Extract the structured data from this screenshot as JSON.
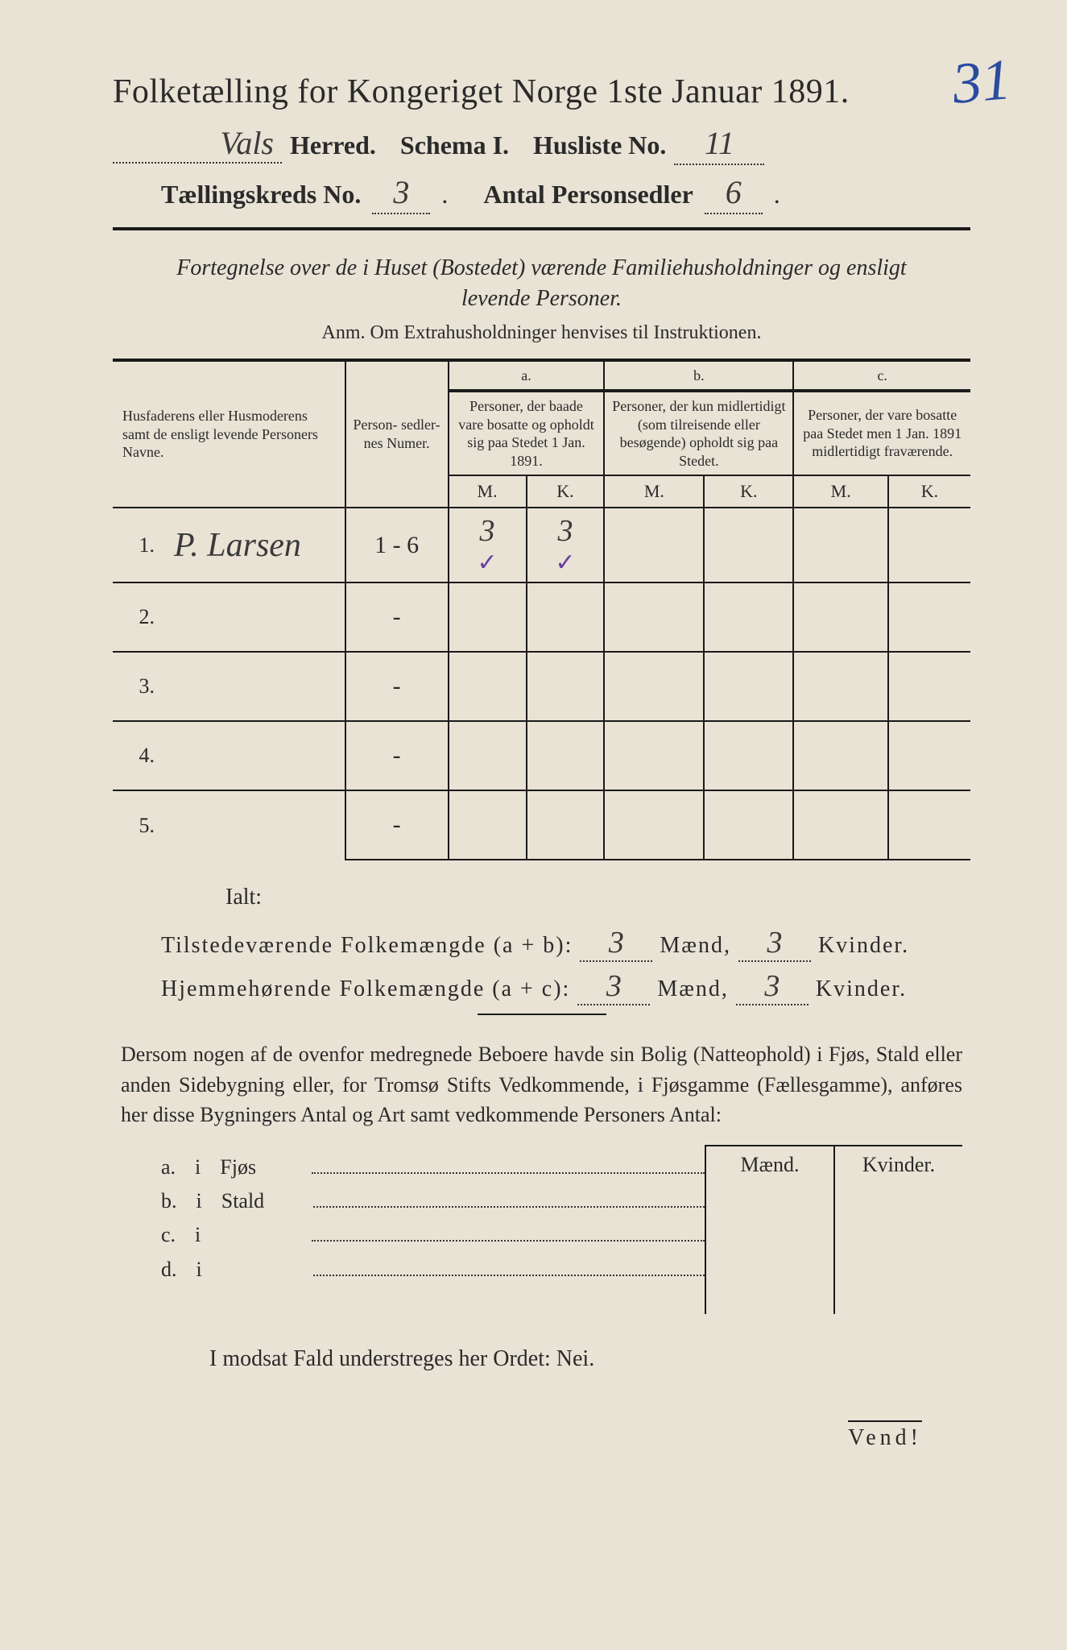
{
  "annotation_top_right": "31",
  "header": {
    "title": "Folketælling for Kongeriget Norge 1ste Januar 1891.",
    "herred_value": "Vals",
    "herred_label": "Herred.",
    "schema_label": "Schema I.",
    "husliste_label": "Husliste No.",
    "husliste_value": "11",
    "kreds_label": "Tællingskreds No.",
    "kreds_value": "3",
    "personsedler_label": "Antal Personsedler",
    "personsedler_value": "6"
  },
  "description": {
    "line1": "Fortegnelse over de i Huset (Bostedet) værende Familiehusholdninger og ensligt",
    "line2": "levende Personer.",
    "anm": "Anm. Om Extrahusholdninger henvises til Instruktionen."
  },
  "table": {
    "col_name": "Husfaderens eller Husmoderens samt de ensligt levende Personers Navne.",
    "col_num": "Person-\nsedler-\nnes\nNumer.",
    "col_a_label": "a.",
    "col_a": "Personer, der baade vare bosatte og opholdt sig paa Stedet 1 Jan. 1891.",
    "col_b_label": "b.",
    "col_b": "Personer, der kun midlertidigt (som tilreisende eller besøgende) opholdt sig paa Stedet.",
    "col_c_label": "c.",
    "col_c": "Personer, der vare bosatte paa Stedet men 1 Jan. 1891 midlertidigt fraværende.",
    "m": "M.",
    "k": "K.",
    "rows": [
      {
        "n": "1.",
        "name": "P. Larsen",
        "num": "1 - 6",
        "am": "3",
        "ak": "3",
        "bm": "",
        "bk": "",
        "cm": "",
        "ck": "",
        "vm": "✓",
        "vk": "✓"
      },
      {
        "n": "2.",
        "name": "",
        "num": "-",
        "am": "",
        "ak": "",
        "bm": "",
        "bk": "",
        "cm": "",
        "ck": ""
      },
      {
        "n": "3.",
        "name": "",
        "num": "-",
        "am": "",
        "ak": "",
        "bm": "",
        "bk": "",
        "cm": "",
        "ck": ""
      },
      {
        "n": "4.",
        "name": "",
        "num": "-",
        "am": "",
        "ak": "",
        "bm": "",
        "bk": "",
        "cm": "",
        "ck": ""
      },
      {
        "n": "5.",
        "name": "",
        "num": "-",
        "am": "",
        "ak": "",
        "bm": "",
        "bk": "",
        "cm": "",
        "ck": ""
      }
    ]
  },
  "totals": {
    "ialt": "Ialt:",
    "line1_label": "Tilstedeværende Folkemængde (a + b):",
    "line2_label": "Hjemmehørende Folkemængde (a + c):",
    "maend": "Mænd,",
    "kvinder": "Kvinder.",
    "l1_m": "3",
    "l1_k": "3",
    "l2_m": "3",
    "l2_k": "3"
  },
  "para": "Dersom nogen af de ovenfor medregnede Beboere havde sin Bolig (Natteophold) i Fjøs, Stald eller anden Sidebygning eller, for Tromsø Stifts Vedkommende, i Fjøsgamme (Fællesgamme), anføres her disse Bygningers Antal og Art samt vedkommende Personers Antal:",
  "buildings": {
    "maend": "Mænd.",
    "kvinder": "Kvinder.",
    "rows": [
      {
        "letter": "a.",
        "i": "i",
        "label": "Fjøs"
      },
      {
        "letter": "b.",
        "i": "i",
        "label": "Stald"
      },
      {
        "letter": "c.",
        "i": "i",
        "label": ""
      },
      {
        "letter": "d.",
        "i": "i",
        "label": ""
      }
    ]
  },
  "nei_line": "I modsat Fald understreges her Ordet: Nei.",
  "vend": "Vend!"
}
